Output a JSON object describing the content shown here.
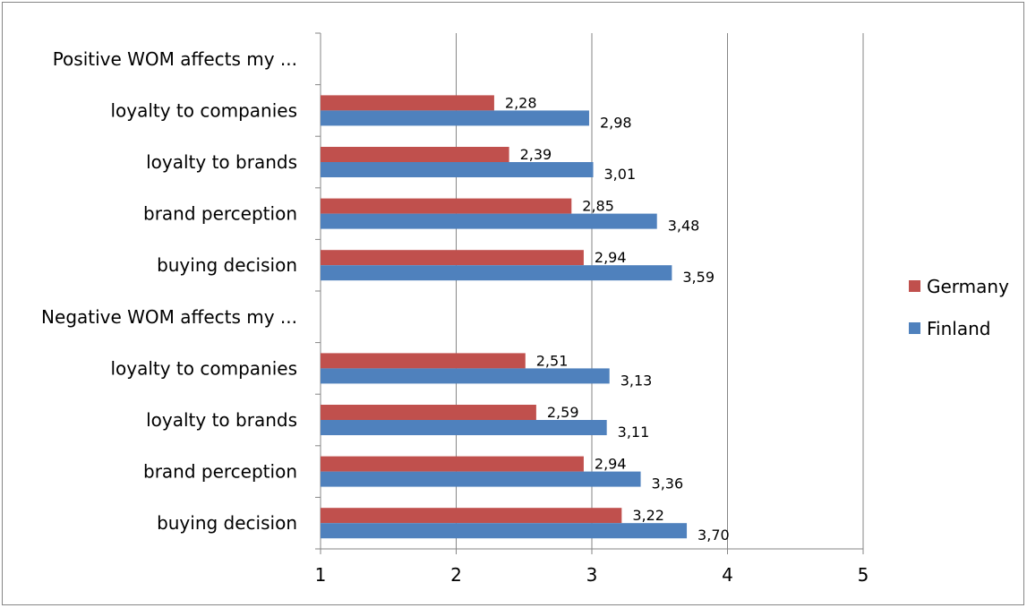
{
  "chart_data": {
    "type": "bar",
    "orientation": "horizontal",
    "categories": [
      "Positive WOM affects my ...",
      "loyalty to companies",
      "loyalty to brands",
      "brand perception",
      "buying decision",
      "Negative WOM affects my ...",
      "loyalty to companies",
      "loyalty to brands",
      "brand perception",
      "buying decision"
    ],
    "series": [
      {
        "name": "Germany",
        "color": "#c0504d",
        "values": [
          null,
          2.28,
          2.39,
          2.85,
          2.94,
          null,
          2.51,
          2.59,
          2.94,
          3.22
        ],
        "labels": [
          "",
          "2,28",
          "2,39",
          "2,85",
          "2,94",
          "",
          "2,51",
          "2,59",
          "2,94",
          "3,22"
        ]
      },
      {
        "name": "Finland",
        "color": "#4f81bd",
        "values": [
          null,
          2.98,
          3.01,
          3.48,
          3.59,
          null,
          3.13,
          3.11,
          3.36,
          3.7
        ],
        "labels": [
          "",
          "2,98",
          "3,01",
          "3,48",
          "3,59",
          "",
          "3,13",
          "3,11",
          "3,36",
          "3,70"
        ]
      }
    ],
    "xlim": [
      1,
      5
    ],
    "xticks": [
      "1",
      "2",
      "3",
      "4",
      "5"
    ],
    "grid": "vertical",
    "legend": "right"
  }
}
